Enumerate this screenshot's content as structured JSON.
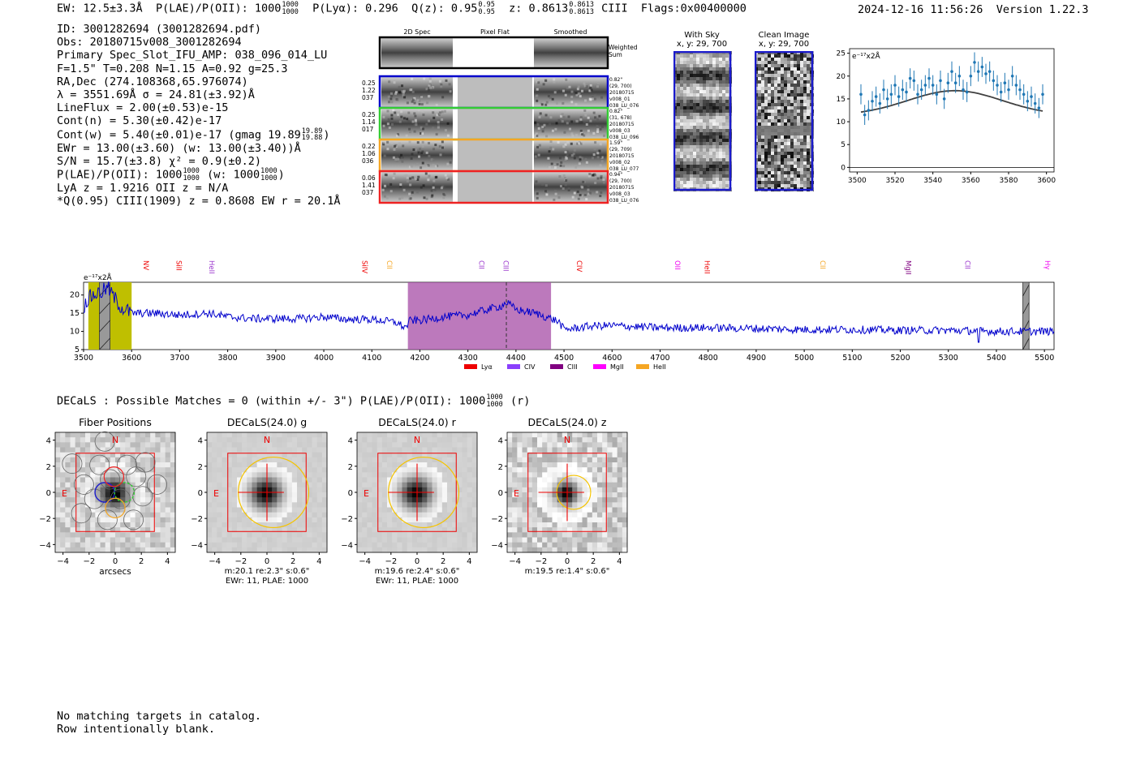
{
  "header": {
    "ew": "EW: 12.5±3.3Å",
    "plae_label": "P(LAE)/P(OII): 1000",
    "plae_hi": "1000",
    "plae_lo": "1000",
    "plya": "P(Lyα): 0.296",
    "qz_label": "Q(z): 0.95",
    "qz_hi": "0.95",
    "qz_lo": "0.95",
    "z_label": "z: 0.8613",
    "z_hi": "0.8613",
    "z_lo": "0.8613",
    "line": "CIII",
    "flags": "Flags:0x00400000"
  },
  "timestamp": "2024-12-16 11:56:26",
  "version": "Version 1.22.3",
  "info": {
    "id": "ID: 3001282694 (3001282694.pdf)",
    "obs": "Obs: 20180715v008_3001282694",
    "primary": "Primary Spec_Slot_IFU_AMP: 038_096_014_LU",
    "params": "F=1.5\"  T=0.208  N=1.15  A=0.92  g=25.3",
    "radec": "RA,Dec (274.108368,65.976074)",
    "lambda": "λ = 3551.69Å  σ = 24.81(±3.92)Å",
    "lineflux": "LineFlux = 2.00(±0.53)e-15",
    "contn": "Cont(n) = 5.30(±0.42)e-17",
    "contw": "Cont(w) = 5.40(±0.01)e-17 (gmag 19.89",
    "contw_hi": "19.89",
    "contw_lo": "19.88",
    "contw_close": ")",
    "ewr": "EWr = 13.00(±3.60) (w: 13.00(±3.40))Å",
    "sn": "S/N = 15.7(±3.8)  χ² = 0.9(±0.2)",
    "plae": "P(LAE)/P(OII): 1000",
    "plae_hi": "1000",
    "plae_lo": "1000",
    "plae_w": "(w: 1000",
    "plae_w_hi": "1000",
    "plae_w_lo": "1000",
    "plae_w_close": ")",
    "lya": "LyA z = 1.9216  OII z = N/A",
    "q": "*Q(0.95) CIII(1909) z = 0.8608  EW r = 20.1Å"
  },
  "cutouts": {
    "headers": [
      "2D Spec",
      "Pixel Flat",
      "Smoothed"
    ],
    "weighted_sum": [
      "Weighted",
      "Sum"
    ],
    "rows": [
      {
        "left": [
          "0.25",
          "1.22",
          "037"
        ],
        "right": [
          "0.82\"",
          "(29, 700)",
          "20180715",
          "v008_01",
          "038_LU_076"
        ],
        "color": "#0000cc"
      },
      {
        "left": [
          "0.25",
          "1.14",
          "017"
        ],
        "right": [
          "0.82\"",
          "(31, 678)",
          "20180715",
          "v008_03",
          "038_LU_096"
        ],
        "color": "#33cc33"
      },
      {
        "left": [
          "0.22",
          "1.06",
          "036"
        ],
        "right": [
          "1.59\"",
          "(29, 709)",
          "20180715",
          "v008_02",
          "038_LU_077"
        ],
        "color": "#f5a623"
      },
      {
        "left": [
          "0.06",
          "1.41",
          "037"
        ],
        "right": [
          "0.94\"",
          "(29, 700)",
          "20180715",
          "v008_03",
          "038_LU_076"
        ],
        "color": "#ee2222"
      }
    ]
  },
  "sky": {
    "with_sky_title": "With Sky",
    "with_sky_sub": "x, y: 29, 700",
    "clean_title": "Clean Image",
    "clean_sub": "x, y: 29, 700"
  },
  "colors": {
    "spectrum": "#0000cc",
    "fit_points": "#1f77b4",
    "fit_curve": "#404040",
    "yellow_band": "#bfbf00",
    "purple_band": "#a64ca6",
    "red": "#ee0000"
  },
  "chart_data": [
    {
      "type": "scatter",
      "name": "line-fit",
      "ylabel": "e⁻¹⁷x2Å",
      "xlim": [
        3496,
        3604
      ],
      "ylim": [
        -1,
        26
      ],
      "xticks": [
        3500,
        3520,
        3540,
        3560,
        3580,
        3600
      ],
      "yticks": [
        0,
        5,
        10,
        15,
        20,
        25
      ],
      "x": [
        3502,
        3504,
        3506,
        3508,
        3510,
        3512,
        3514,
        3516,
        3518,
        3520,
        3522,
        3524,
        3526,
        3528,
        3530,
        3532,
        3534,
        3536,
        3538,
        3540,
        3542,
        3544,
        3546,
        3548,
        3550,
        3552,
        3554,
        3556,
        3558,
        3560,
        3562,
        3564,
        3566,
        3568,
        3570,
        3572,
        3574,
        3576,
        3578,
        3580,
        3582,
        3584,
        3586,
        3588,
        3590,
        3592,
        3594,
        3596,
        3598
      ],
      "y": [
        16,
        11.5,
        12.5,
        14.5,
        15.5,
        14,
        17,
        15,
        16,
        18,
        15.5,
        17,
        16.5,
        19.5,
        19,
        16,
        17,
        18,
        19.5,
        18,
        16,
        19,
        15,
        18.5,
        21,
        18.5,
        20,
        17,
        16.5,
        20,
        23,
        21,
        22,
        20.5,
        21,
        19,
        18,
        16.5,
        18.5,
        17,
        20,
        18,
        17,
        16,
        14.5,
        15.5,
        14,
        13,
        16
      ],
      "yerr": 2.2,
      "fit": {
        "type": "gaussian",
        "mu": 3551.69,
        "sigma": 24.81,
        "amp": 5.4,
        "base": 11.4
      }
    },
    {
      "type": "line",
      "name": "full-spectrum",
      "ylabel": "e⁻¹⁷x2Å",
      "xlim": [
        3500,
        5520
      ],
      "ylim": [
        5,
        23.5
      ],
      "xticks": [
        3500,
        3600,
        3700,
        3800,
        3900,
        4000,
        4100,
        4200,
        4300,
        4400,
        4500,
        4600,
        4700,
        4800,
        4900,
        5000,
        5100,
        5200,
        5300,
        5400,
        5500
      ],
      "yticks": [
        5,
        10,
        15,
        20
      ],
      "anchors_x": [
        3500,
        3510,
        3520,
        3530,
        3540,
        3550,
        3560,
        3570,
        3580,
        3600,
        3650,
        3700,
        3760,
        3800,
        3850,
        3900,
        3950,
        4000,
        4050,
        4100,
        4150,
        4170,
        4180,
        4200,
        4250,
        4300,
        4340,
        4370,
        4380,
        4400,
        4440,
        4480,
        4490,
        4500,
        4530,
        4560,
        4600,
        4700,
        4800,
        4900,
        5000,
        5100,
        5200,
        5300,
        5400,
        5520
      ],
      "anchors_y": [
        17,
        19,
        20,
        20.5,
        21,
        22,
        20,
        18,
        16.5,
        15,
        15,
        14.5,
        15,
        14,
        13.5,
        13.5,
        13.5,
        14,
        13.3,
        13.3,
        12.5,
        11,
        13,
        13,
        14,
        14.5,
        16,
        17,
        18,
        16,
        15,
        13.2,
        12.5,
        10.5,
        11,
        11.5,
        11.6,
        11,
        11,
        10.8,
        10.5,
        10.5,
        10.3,
        10.3,
        10,
        10
      ],
      "bands": [
        {
          "from": 3510,
          "to": 3600,
          "color": "yellow"
        },
        {
          "from": 4175,
          "to": 4473,
          "color": "purple"
        }
      ],
      "hatched": [
        {
          "from": 3533,
          "to": 3555
        },
        {
          "from": 5455,
          "to": 5468
        }
      ],
      "dashed_x": 4380,
      "line_labels": [
        {
          "label": "NV",
          "x": 3625,
          "color": "#ee0000"
        },
        {
          "label": "SiII",
          "x": 3693,
          "color": "#ee0000"
        },
        {
          "label": "HeII",
          "x": 3762,
          "color": "#9933cc"
        },
        {
          "label": "SiIV",
          "x": 4080,
          "color": "#ee0000"
        },
        {
          "label": "CII",
          "x": 4132,
          "color": "#f5a623"
        },
        {
          "label": "CII",
          "x": 4323,
          "color": "#9933cc"
        },
        {
          "label": "CIII",
          "x": 4374,
          "color": "#9933cc"
        },
        {
          "label": "CIV",
          "x": 4527,
          "color": "#ee0000"
        },
        {
          "label": "OII",
          "x": 4731,
          "color": "#ee00ee"
        },
        {
          "label": "HeII",
          "x": 4793,
          "color": "#ee0000"
        },
        {
          "label": "CII",
          "x": 5034,
          "color": "#f5a623"
        },
        {
          "label": "MgII",
          "x": 5212,
          "color": "#800080"
        },
        {
          "label": "CII",
          "x": 5335,
          "color": "#9933cc"
        },
        {
          "label": "Hγ",
          "x": 5501,
          "color": "#ee00ee"
        }
      ],
      "legend": [
        {
          "label": "Lyα",
          "color": "#ee0000"
        },
        {
          "label": "CIV",
          "color": "#8a3ffc"
        },
        {
          "label": "CIII",
          "color": "#800080"
        },
        {
          "label": "MgII",
          "color": "#ff00ff"
        },
        {
          "label": "HeII",
          "color": "#f5a623"
        }
      ]
    }
  ],
  "decals": {
    "summary": "DECaLS : Possible Matches = 0 (within +/- 3\")  P(LAE)/P(OII): 1000",
    "summary_hi": "1000",
    "summary_lo": "1000",
    "summary_suffix": "(r)",
    "panels": [
      {
        "title": "Fiber Positions",
        "xlabel": "arcsecs",
        "caption1": "",
        "caption2": ""
      },
      {
        "title": "DECaLS(24.0) g",
        "xlabel": "",
        "caption1": "m:20.1  re:2.3\"  s:0.6\"",
        "caption2": "EWr: 11, PLAE: 1000"
      },
      {
        "title": "DECaLS(24.0) r",
        "xlabel": "",
        "caption1": "m:19.6  re:2.4\"  s:0.6\"",
        "caption2": "EWr: 11, PLAE: 1000"
      },
      {
        "title": "DECaLS(24.0) z",
        "xlabel": "",
        "caption1": "m:19.5  re:1.4\"  s:0.6\"",
        "caption2": ""
      }
    ],
    "tick_labels": [
      "−4",
      "−2",
      "0",
      "2",
      "4"
    ],
    "north": "N",
    "east": "E"
  },
  "footer": {
    "line1": "No matching targets in catalog.",
    "line2": "Row intentionally blank."
  }
}
